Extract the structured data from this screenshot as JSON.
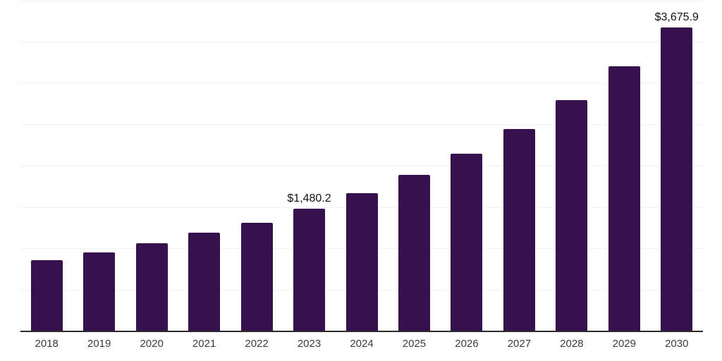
{
  "chart_data": {
    "type": "bar",
    "title": "",
    "xlabel": "",
    "ylabel": "",
    "categories": [
      "2018",
      "2019",
      "2020",
      "2021",
      "2022",
      "2023",
      "2024",
      "2025",
      "2026",
      "2027",
      "2028",
      "2029",
      "2030"
    ],
    "values": [
      865,
      955,
      1065,
      1190,
      1315,
      1480.2,
      1675,
      1890,
      2145,
      2445,
      2795,
      3205,
      3675.9
    ],
    "point_labels": {
      "2023": "$1,480.2",
      "2030": "$3,675.9"
    },
    "ylim": [
      0,
      4000
    ],
    "gridline_step": 500,
    "grid": "horizontal-only",
    "legend": "none",
    "colors": {
      "bar": "#36114E",
      "gridline": "#F2F2F2",
      "axis_line": "#2B2B2B",
      "tick_text": "#3C3C3C",
      "value_label_text": "#111111",
      "background": "#FFFFFF"
    }
  }
}
